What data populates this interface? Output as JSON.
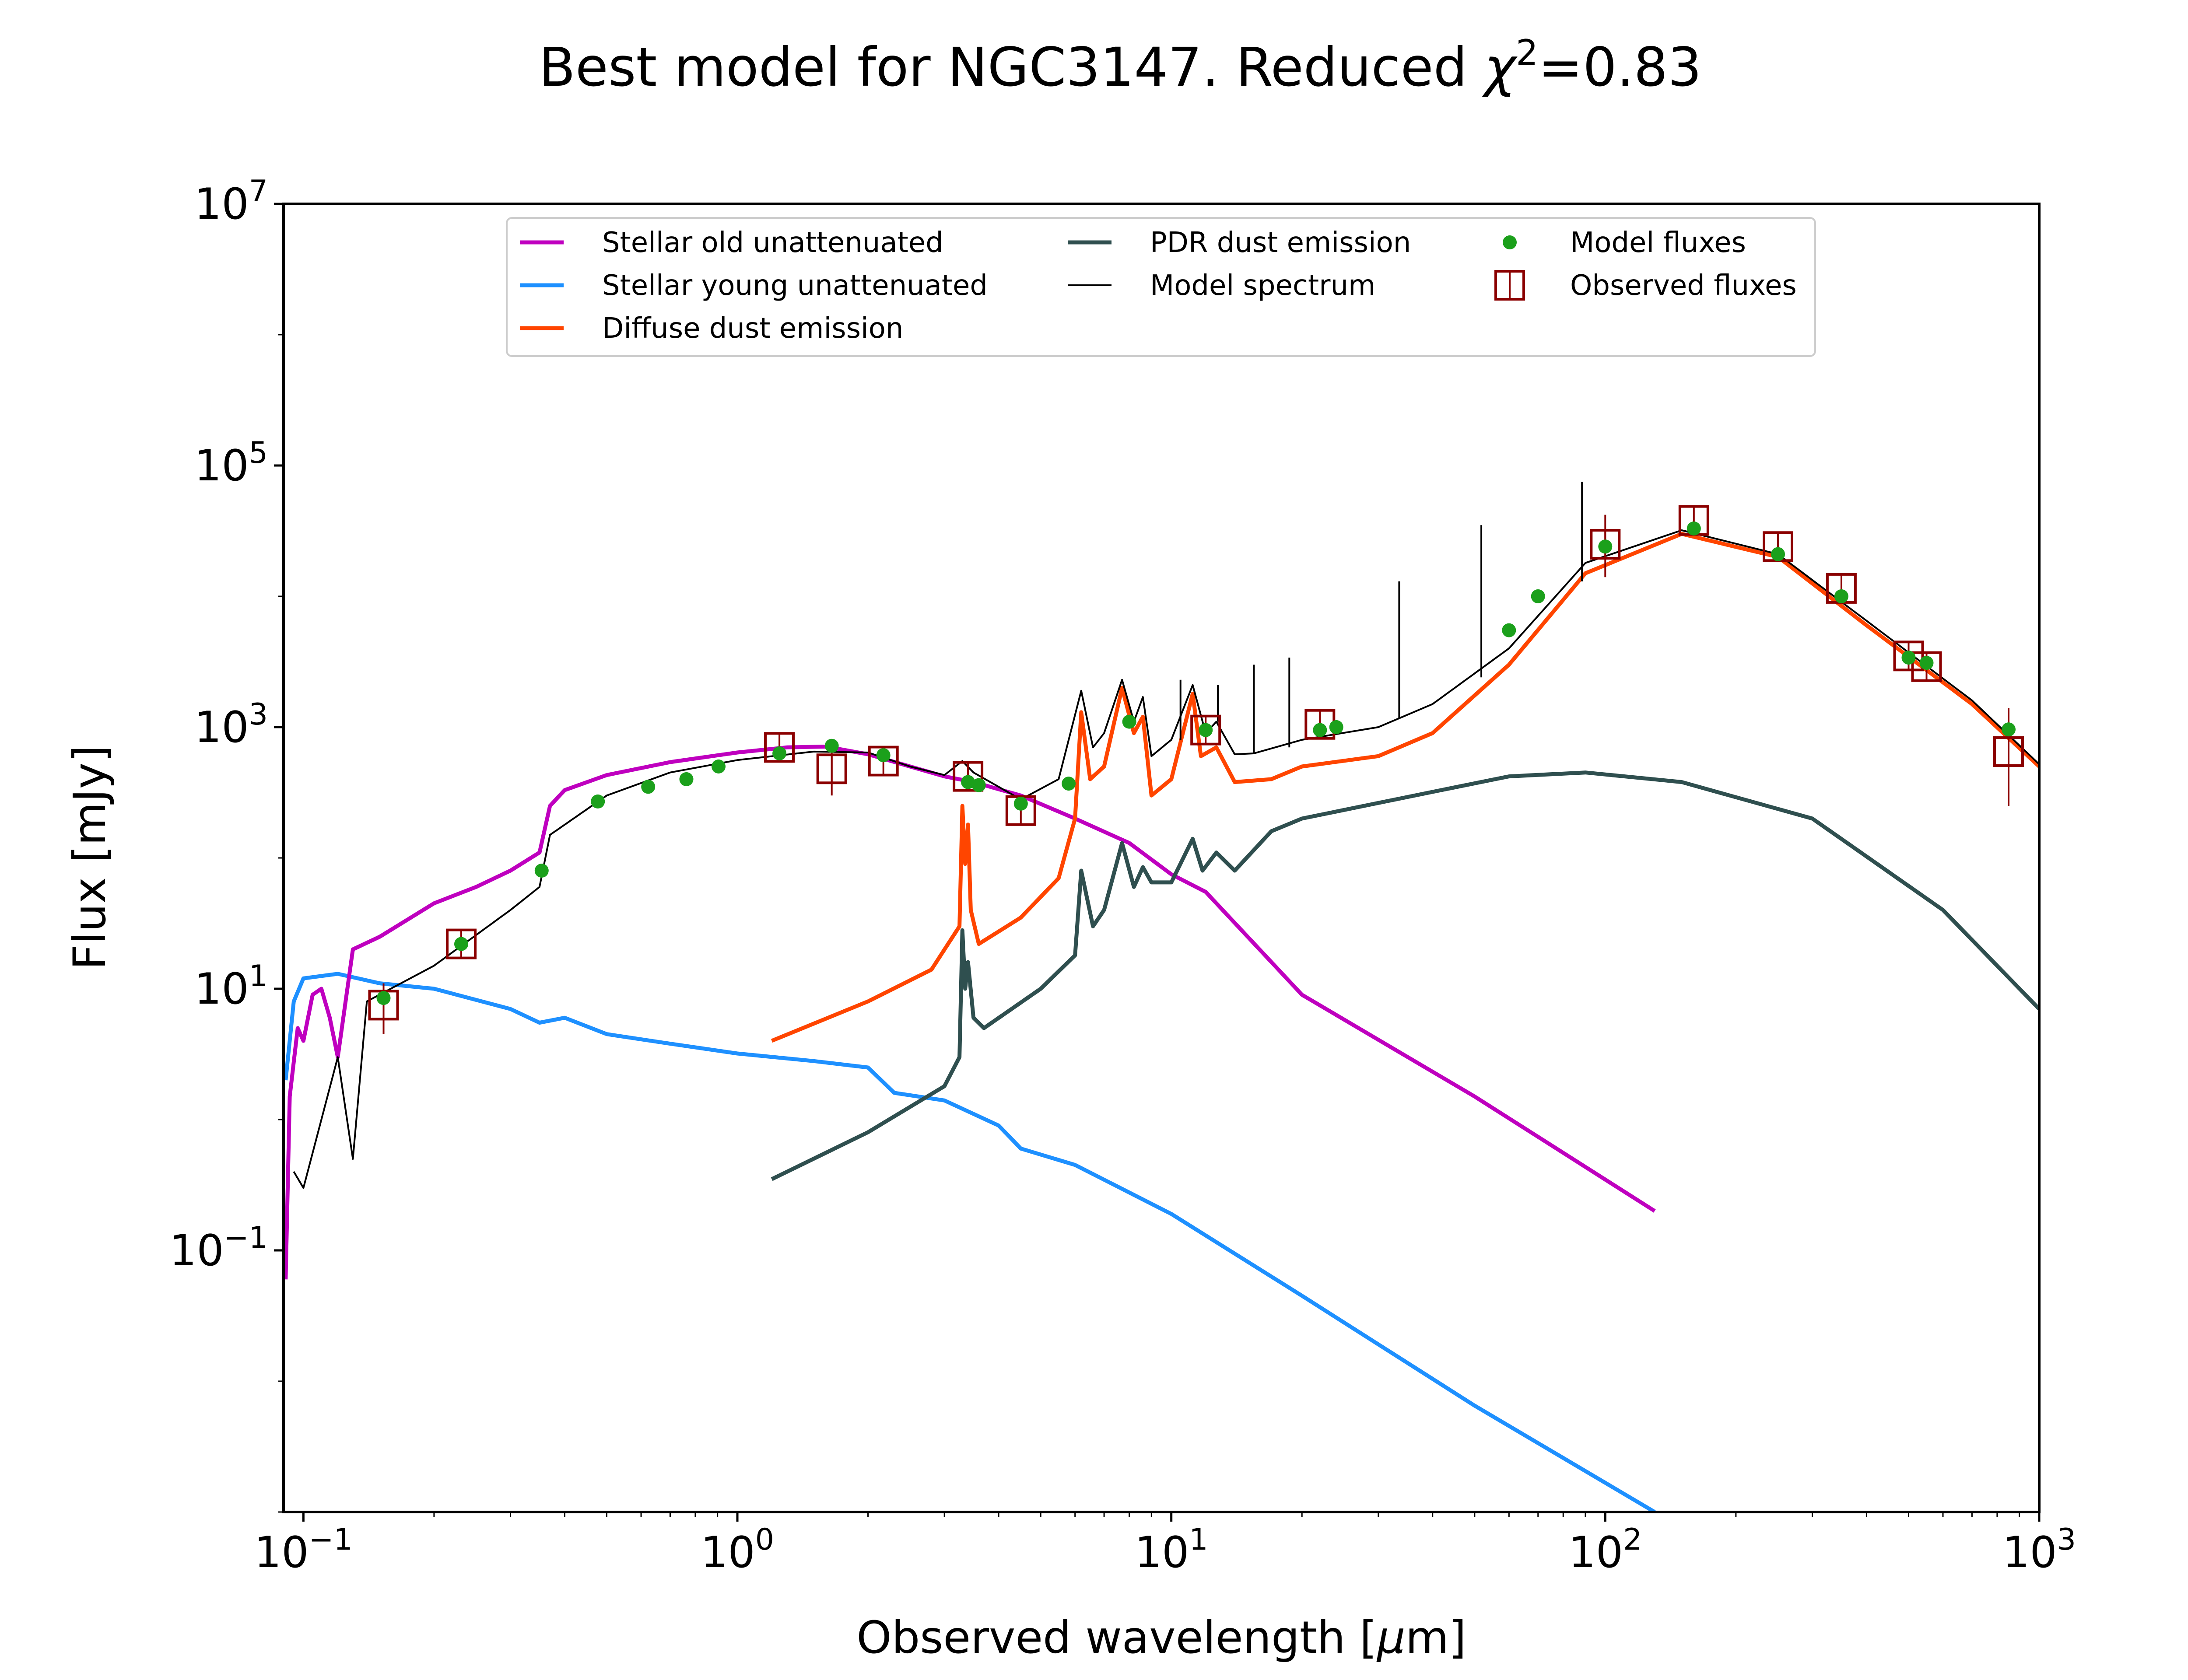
{
  "chart_data": {
    "type": "line",
    "title": "Best model for NGC3147. Reduced χ²=0.83",
    "title_parts": {
      "prefix": "Best model for NGC3147. Reduced ",
      "chi": "χ",
      "sup": "2",
      "suffix": "=0.83"
    },
    "xlabel": "Observed wavelength [μm]",
    "xlabel_parts": {
      "prefix": "Observed wavelength [",
      "mu": "μ",
      "suffix": "m]"
    },
    "ylabel": "Flux [mJy]",
    "x_scale": "log",
    "y_scale": "log",
    "xlim": [
      0.09,
      1000
    ],
    "ylim": [
      0.001,
      10000000
    ],
    "x_ticks": [
      {
        "value": 0.1,
        "base": "10",
        "exp": "−1"
      },
      {
        "value": 1,
        "base": "10",
        "exp": "0"
      },
      {
        "value": 10,
        "base": "10",
        "exp": "1"
      },
      {
        "value": 100,
        "base": "10",
        "exp": "2"
      },
      {
        "value": 1000,
        "base": "10",
        "exp": "3"
      }
    ],
    "y_ticks": [
      {
        "value": 0.1,
        "base": "10",
        "exp": "−1"
      },
      {
        "value": 10,
        "base": "10",
        "exp": "1"
      },
      {
        "value": 1000,
        "base": "10",
        "exp": "3"
      },
      {
        "value": 100000,
        "base": "10",
        "exp": "5"
      },
      {
        "value": 10000000,
        "base": "10",
        "exp": "7"
      }
    ],
    "legend_position": "top-center",
    "legend": {
      "entries": [
        {
          "label": "Stellar old unattenuated",
          "marker": "line",
          "series": "stellar_old"
        },
        {
          "label": "Stellar young unattenuated",
          "marker": "line",
          "series": "stellar_young"
        },
        {
          "label": "Diffuse dust emission",
          "marker": "line",
          "series": "diffuse_dust"
        },
        {
          "label": "PDR dust emission",
          "marker": "line",
          "series": "pdr_dust"
        },
        {
          "label": "Model spectrum",
          "marker": "line",
          "series": "model_spectrum"
        },
        {
          "label": "Model fluxes",
          "marker": "dot",
          "series": "model_fluxes"
        },
        {
          "label": "Observed fluxes",
          "marker": "square",
          "series": "observed_fluxes"
        }
      ]
    },
    "series": [
      {
        "id": "stellar_old",
        "name": "Stellar old unattenuated",
        "color": "#bf00bf",
        "type": "line",
        "points": [
          [
            0.091,
            0.06
          ],
          [
            0.093,
            1.5
          ],
          [
            0.097,
            5
          ],
          [
            0.1,
            4
          ],
          [
            0.105,
            9
          ],
          [
            0.11,
            10
          ],
          [
            0.115,
            6
          ],
          [
            0.12,
            3
          ],
          [
            0.13,
            20
          ],
          [
            0.15,
            25
          ],
          [
            0.2,
            45
          ],
          [
            0.25,
            60
          ],
          [
            0.3,
            80
          ],
          [
            0.35,
            110
          ],
          [
            0.37,
            250
          ],
          [
            0.4,
            330
          ],
          [
            0.5,
            430
          ],
          [
            0.7,
            540
          ],
          [
            1.0,
            640
          ],
          [
            1.3,
            700
          ],
          [
            1.6,
            710
          ],
          [
            2.0,
            620
          ],
          [
            2.5,
            500
          ],
          [
            3.0,
            420
          ],
          [
            3.5,
            380
          ],
          [
            4.5,
            300
          ],
          [
            6,
            200
          ],
          [
            8,
            130
          ],
          [
            10,
            75
          ],
          [
            12,
            55
          ],
          [
            20,
            9
          ],
          [
            50,
            1.5
          ],
          [
            130,
            0.2
          ]
        ]
      },
      {
        "id": "stellar_young",
        "name": "Stellar young unattenuated",
        "color": "#1e90ff",
        "type": "line",
        "points": [
          [
            0.091,
            2
          ],
          [
            0.095,
            8
          ],
          [
            0.1,
            12
          ],
          [
            0.12,
            13
          ],
          [
            0.15,
            11
          ],
          [
            0.2,
            10
          ],
          [
            0.3,
            7
          ],
          [
            0.35,
            5.5
          ],
          [
            0.4,
            6
          ],
          [
            0.5,
            4.5
          ],
          [
            0.7,
            3.8
          ],
          [
            1.0,
            3.2
          ],
          [
            1.5,
            2.8
          ],
          [
            2.0,
            2.5
          ],
          [
            2.3,
            1.6
          ],
          [
            3,
            1.4
          ],
          [
            4,
            0.9
          ],
          [
            4.5,
            0.6
          ],
          [
            6,
            0.45
          ],
          [
            10,
            0.19
          ],
          [
            20,
            0.045
          ],
          [
            50,
            0.0065
          ],
          [
            130,
            0.001
          ]
        ]
      },
      {
        "id": "diffuse_dust",
        "name": "Diffuse dust emission",
        "color": "#ff4500",
        "type": "line",
        "points": [
          [
            1.2,
            4
          ],
          [
            2,
            8
          ],
          [
            2.8,
            14
          ],
          [
            3.25,
            30
          ],
          [
            3.3,
            250
          ],
          [
            3.35,
            90
          ],
          [
            3.4,
            180
          ],
          [
            3.45,
            40
          ],
          [
            3.6,
            22
          ],
          [
            4.5,
            35
          ],
          [
            5.5,
            70
          ],
          [
            6.0,
            200
          ],
          [
            6.2,
            1300
          ],
          [
            6.5,
            400
          ],
          [
            7.0,
            500
          ],
          [
            7.7,
            2000
          ],
          [
            8.2,
            900
          ],
          [
            8.6,
            1200
          ],
          [
            9,
            300
          ],
          [
            10,
            400
          ],
          [
            11.2,
            1800
          ],
          [
            11.7,
            600
          ],
          [
            12.7,
            700
          ],
          [
            14,
            380
          ],
          [
            17,
            400
          ],
          [
            20,
            500
          ],
          [
            30,
            600
          ],
          [
            40,
            900
          ],
          [
            60,
            3000
          ],
          [
            90,
            15000
          ],
          [
            150,
            30000
          ],
          [
            250,
            20000
          ],
          [
            400,
            6000
          ],
          [
            700,
            1500
          ],
          [
            1000,
            500
          ]
        ]
      },
      {
        "id": "pdr_dust",
        "name": "PDR dust emission",
        "color": "#2f4f4f",
        "type": "line",
        "points": [
          [
            1.2,
            0.35
          ],
          [
            2,
            0.8
          ],
          [
            3.0,
            1.8
          ],
          [
            3.25,
            3
          ],
          [
            3.3,
            28
          ],
          [
            3.35,
            10
          ],
          [
            3.4,
            16
          ],
          [
            3.5,
            6
          ],
          [
            3.7,
            5
          ],
          [
            5,
            10
          ],
          [
            6.0,
            18
          ],
          [
            6.2,
            80
          ],
          [
            6.6,
            30
          ],
          [
            7.0,
            40
          ],
          [
            7.7,
            130
          ],
          [
            8.2,
            60
          ],
          [
            8.6,
            85
          ],
          [
            9,
            65
          ],
          [
            10,
            65
          ],
          [
            11.2,
            140
          ],
          [
            11.8,
            80
          ],
          [
            12.7,
            110
          ],
          [
            14,
            80
          ],
          [
            17,
            160
          ],
          [
            20,
            200
          ],
          [
            40,
            320
          ],
          [
            60,
            420
          ],
          [
            90,
            450
          ],
          [
            150,
            380
          ],
          [
            300,
            200
          ],
          [
            600,
            40
          ],
          [
            1000,
            7
          ]
        ]
      },
      {
        "id": "model_spectrum",
        "name": "Model spectrum",
        "color": "#000000",
        "type": "line",
        "points": [
          [
            0.095,
            0.4
          ],
          [
            0.1,
            0.3
          ],
          [
            0.12,
            3
          ],
          [
            0.13,
            0.5
          ],
          [
            0.14,
            8
          ],
          [
            0.2,
            15
          ],
          [
            0.3,
            40
          ],
          [
            0.35,
            60
          ],
          [
            0.37,
            150
          ],
          [
            0.5,
            300
          ],
          [
            0.7,
            450
          ],
          [
            1.0,
            560
          ],
          [
            1.5,
            650
          ],
          [
            2.0,
            640
          ],
          [
            2.5,
            500
          ],
          [
            3.0,
            430
          ],
          [
            3.3,
            550
          ],
          [
            3.5,
            450
          ],
          [
            4.5,
            280
          ],
          [
            5.5,
            400
          ],
          [
            6.2,
            1900
          ],
          [
            6.6,
            700
          ],
          [
            7.0,
            900
          ],
          [
            7.7,
            2300
          ],
          [
            8.2,
            1100
          ],
          [
            8.6,
            1700
          ],
          [
            9,
            600
          ],
          [
            10,
            800
          ],
          [
            11.2,
            2100
          ],
          [
            12,
            900
          ],
          [
            12.7,
            1100
          ],
          [
            14,
            620
          ],
          [
            15.5,
            630
          ],
          [
            20,
            800
          ],
          [
            30,
            1000
          ],
          [
            40,
            1500
          ],
          [
            60,
            4000
          ],
          [
            90,
            18000
          ],
          [
            150,
            32000
          ],
          [
            250,
            21000
          ],
          [
            400,
            6500
          ],
          [
            700,
            1600
          ],
          [
            1000,
            520
          ]
        ]
      },
      {
        "id": "model_fluxes",
        "name": "Model fluxes",
        "color": "#1ba01b",
        "type": "scatter",
        "points": [
          [
            0.153,
            8.5
          ],
          [
            0.231,
            22
          ],
          [
            0.354,
            80
          ],
          [
            0.477,
            270
          ],
          [
            0.623,
            350
          ],
          [
            0.763,
            400
          ],
          [
            0.905,
            500
          ],
          [
            1.25,
            630
          ],
          [
            1.65,
            720
          ],
          [
            2.17,
            610
          ],
          [
            3.4,
            380
          ],
          [
            3.6,
            360
          ],
          [
            4.5,
            260
          ],
          [
            5.8,
            370
          ],
          [
            8.0,
            1100
          ],
          [
            12,
            950
          ],
          [
            22,
            950
          ],
          [
            24,
            1000
          ],
          [
            60,
            5500
          ],
          [
            70,
            10000
          ],
          [
            100,
            24000
          ],
          [
            160,
            33000
          ],
          [
            250,
            21000
          ],
          [
            350,
            10000
          ],
          [
            500,
            3400
          ],
          [
            550,
            3100
          ],
          [
            850,
            960
          ]
        ]
      },
      {
        "id": "observed_fluxes",
        "name": "Observed fluxes",
        "color": "#8b0000",
        "type": "scatter",
        "points": [
          [
            0.153,
            7.5
          ],
          [
            0.231,
            22
          ],
          [
            1.25,
            700
          ],
          [
            1.65,
            480
          ],
          [
            2.17,
            550
          ],
          [
            3.4,
            420
          ],
          [
            4.5,
            230
          ],
          [
            12,
            950
          ],
          [
            22,
            1050
          ],
          [
            100,
            25000
          ],
          [
            160,
            38000
          ],
          [
            250,
            24000
          ],
          [
            350,
            11500
          ],
          [
            500,
            3500
          ],
          [
            550,
            2900
          ],
          [
            850,
            650
          ]
        ],
        "errors": [
          [
            0.153,
            4.5,
            11
          ],
          [
            1.65,
            300,
            700
          ],
          [
            100,
            14000,
            42000
          ],
          [
            850,
            250,
            1400
          ]
        ]
      }
    ],
    "emission_lines": [
      [
        15.5,
        630,
        3000
      ],
      [
        18.7,
        700,
        3400
      ],
      [
        33.5,
        1150,
        13000
      ],
      [
        51.8,
        2400,
        35000
      ],
      [
        88.4,
        13000,
        75000
      ],
      [
        10.5,
        800,
        2300
      ],
      [
        12.8,
        1100,
        2100
      ]
    ]
  }
}
